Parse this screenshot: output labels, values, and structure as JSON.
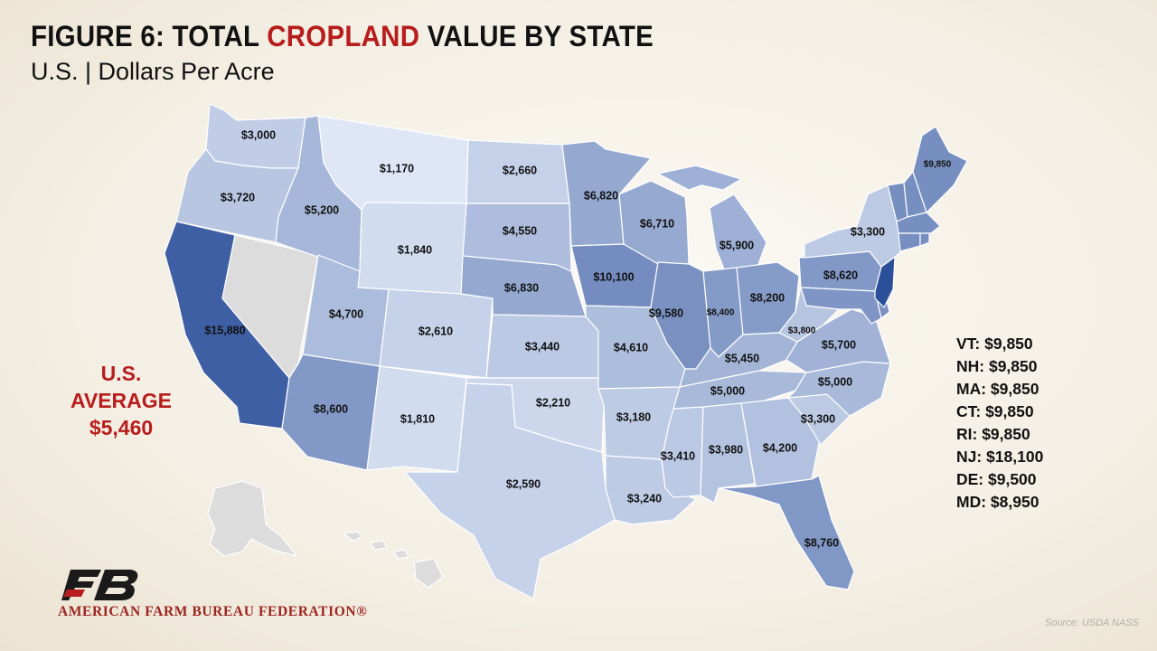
{
  "header": {
    "title_prefix": "FIGURE 6: TOTAL ",
    "title_highlight": "CROPLAND",
    "title_suffix": " VALUE BY STATE",
    "subtitle": "U.S. | Dollars Per Acre"
  },
  "average": {
    "line1": "U.S.",
    "line2": "AVERAGE",
    "value": "$5,460"
  },
  "colors": {
    "highlight_red": "#b81d1d",
    "no_data_gray": "#dcdcdc",
    "state_border": "#ffffff",
    "scale_light": "#dfe7f6",
    "scale_dark": "#2c4f9a"
  },
  "map_data": {
    "type": "choropleth",
    "unit": "Dollars Per Acre",
    "states": [
      {
        "id": "WA",
        "label": "$3,000",
        "value": 3000
      },
      {
        "id": "OR",
        "label": "$3,720",
        "value": 3720
      },
      {
        "id": "CA",
        "label": "$15,880",
        "value": 15880
      },
      {
        "id": "NV",
        "label": "",
        "value": null
      },
      {
        "id": "ID",
        "label": "$5,200",
        "value": 5200
      },
      {
        "id": "MT",
        "label": "$1,170",
        "value": 1170
      },
      {
        "id": "WY",
        "label": "$1,840",
        "value": 1840
      },
      {
        "id": "UT",
        "label": "$4,700",
        "value": 4700
      },
      {
        "id": "AZ",
        "label": "$8,600",
        "value": 8600
      },
      {
        "id": "CO",
        "label": "$2,610",
        "value": 2610
      },
      {
        "id": "NM",
        "label": "$1,810",
        "value": 1810
      },
      {
        "id": "ND",
        "label": "$2,660",
        "value": 2660
      },
      {
        "id": "SD",
        "label": "$4,550",
        "value": 4550
      },
      {
        "id": "NE",
        "label": "$6,830",
        "value": 6830
      },
      {
        "id": "KS",
        "label": "$3,440",
        "value": 3440
      },
      {
        "id": "OK",
        "label": "$2,210",
        "value": 2210
      },
      {
        "id": "TX",
        "label": "$2,590",
        "value": 2590
      },
      {
        "id": "MN",
        "label": "$6,820",
        "value": 6820
      },
      {
        "id": "IA",
        "label": "$10,100",
        "value": 10100
      },
      {
        "id": "MO",
        "label": "$4,610",
        "value": 4610
      },
      {
        "id": "AR",
        "label": "$3,180",
        "value": 3180
      },
      {
        "id": "LA",
        "label": "$3,240",
        "value": 3240
      },
      {
        "id": "WI",
        "label": "$6,710",
        "value": 6710
      },
      {
        "id": "IL",
        "label": "$9,580",
        "value": 9580
      },
      {
        "id": "MI",
        "label": "$5,900",
        "value": 5900
      },
      {
        "id": "IN",
        "label": "$8,400",
        "value": 8400
      },
      {
        "id": "OH",
        "label": "$8,200",
        "value": 8200
      },
      {
        "id": "KY",
        "label": "$5,450",
        "value": 5450
      },
      {
        "id": "TN",
        "label": "$5,000",
        "value": 5000
      },
      {
        "id": "MS",
        "label": "$3,410",
        "value": 3410
      },
      {
        "id": "AL",
        "label": "$3,980",
        "value": 3980
      },
      {
        "id": "GA",
        "label": "$4,200",
        "value": 4200
      },
      {
        "id": "FL",
        "label": "$8,760",
        "value": 8760
      },
      {
        "id": "SC",
        "label": "$3,300",
        "value": 3300
      },
      {
        "id": "NC",
        "label": "$5,000",
        "value": 5000
      },
      {
        "id": "VA",
        "label": "$5,700",
        "value": 5700
      },
      {
        "id": "WV",
        "label": "$3,800",
        "value": 3800
      },
      {
        "id": "PA",
        "label": "$8,620",
        "value": 8620
      },
      {
        "id": "NY",
        "label": "$3,300",
        "value": 3300
      },
      {
        "id": "ME",
        "label": "$9,850",
        "value": 9850
      },
      {
        "id": "VT",
        "label": "",
        "value": 9850
      },
      {
        "id": "NH",
        "label": "",
        "value": 9850
      },
      {
        "id": "MA",
        "label": "",
        "value": 9850
      },
      {
        "id": "CT",
        "label": "",
        "value": 9850
      },
      {
        "id": "RI",
        "label": "",
        "value": 9850
      },
      {
        "id": "NJ",
        "label": "",
        "value": 18100
      },
      {
        "id": "DE",
        "label": "",
        "value": 9500
      },
      {
        "id": "MD",
        "label": "",
        "value": 8950
      },
      {
        "id": "AK",
        "label": "",
        "value": null
      },
      {
        "id": "HI",
        "label": "",
        "value": null
      }
    ]
  },
  "northeast_list": [
    "VT: $9,850",
    "NH: $9,850",
    "MA: $9,850",
    "CT: $9,850",
    "RI: $9,850",
    "NJ: $18,100",
    "DE: $9,500",
    "MD: $8,950"
  ],
  "footer": {
    "organization": "AMERICAN FARM BUREAU FEDERATION",
    "registered_mark": "®",
    "source": "Source: USDA NASS"
  }
}
